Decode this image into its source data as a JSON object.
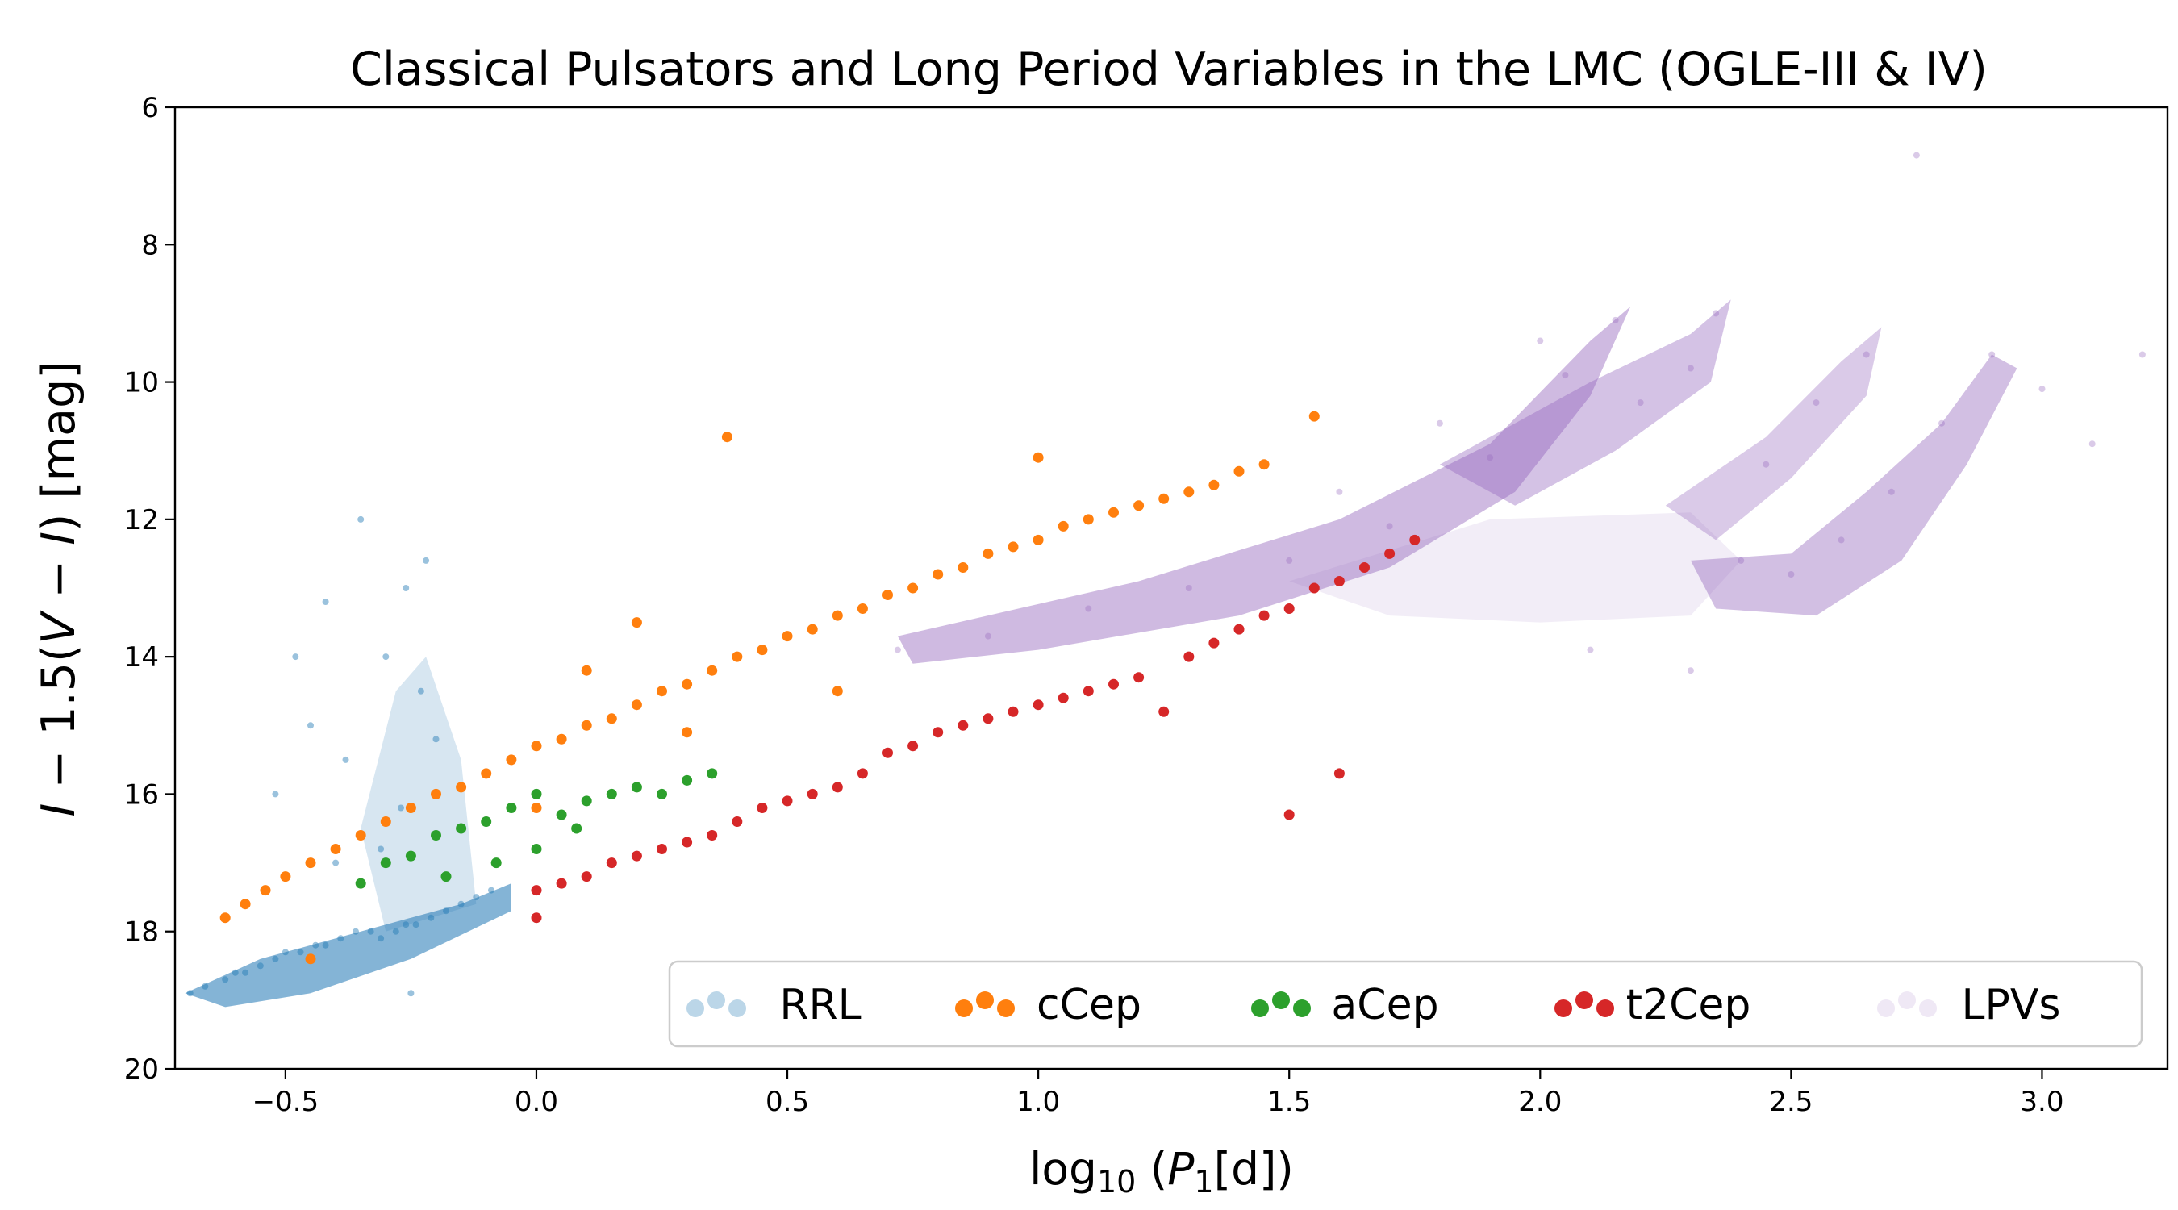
{
  "chart_data": {
    "type": "scatter",
    "title": "Classical Pulsators and Long Period Variables in the LMC (OGLE-III & IV)",
    "xlabel": {
      "base": "log",
      "sub": "10",
      "mid": " (",
      "var": "P",
      "varsub": "1",
      "tail": "[d])"
    },
    "ylabel": {
      "v1": "I",
      "t1": " − 1.5(",
      "v2": "V",
      "t2": " − ",
      "v3": "I",
      "t3": ") [mag]"
    },
    "xlim": [
      -0.72,
      3.25
    ],
    "ylim": [
      20,
      6
    ],
    "x_ticks": [
      -0.5,
      0.0,
      0.5,
      1.0,
      1.5,
      2.0,
      2.5,
      3.0
    ],
    "x_tick_labels": [
      "−0.5",
      "0.0",
      "0.5",
      "1.0",
      "1.5",
      "2.0",
      "2.5",
      "3.0"
    ],
    "y_ticks": [
      6,
      8,
      10,
      12,
      14,
      16,
      18,
      20
    ],
    "y_tick_labels": [
      "6",
      "8",
      "10",
      "12",
      "14",
      "16",
      "18",
      "20"
    ],
    "legend_position": "lower-right",
    "series": [
      {
        "name": "RRL",
        "color": "#1f77b4",
        "points": [
          [
            -0.69,
            18.9
          ],
          [
            -0.66,
            18.8
          ],
          [
            -0.62,
            18.7
          ],
          [
            -0.58,
            18.6
          ],
          [
            -0.55,
            18.5
          ],
          [
            -0.52,
            18.4
          ],
          [
            -0.5,
            18.3
          ],
          [
            -0.47,
            18.3
          ],
          [
            -0.44,
            18.2
          ],
          [
            -0.42,
            18.2
          ],
          [
            -0.39,
            18.1
          ],
          [
            -0.36,
            18.0
          ],
          [
            -0.33,
            18.0
          ],
          [
            -0.31,
            18.1
          ],
          [
            -0.28,
            18.0
          ],
          [
            -0.26,
            17.9
          ],
          [
            -0.24,
            17.9
          ],
          [
            -0.21,
            17.8
          ],
          [
            -0.18,
            17.7
          ],
          [
            -0.15,
            17.6
          ],
          [
            -0.12,
            17.5
          ],
          [
            -0.09,
            17.4
          ],
          [
            -0.48,
            14.0
          ],
          [
            -0.45,
            15.0
          ],
          [
            -0.42,
            13.2
          ],
          [
            -0.52,
            16.0
          ],
          [
            -0.38,
            15.5
          ],
          [
            -0.35,
            12.0
          ],
          [
            -0.3,
            14.0
          ],
          [
            -0.26,
            13.0
          ],
          [
            -0.23,
            14.5
          ],
          [
            -0.2,
            15.2
          ],
          [
            -0.22,
            12.6
          ],
          [
            -0.27,
            16.2
          ],
          [
            -0.31,
            16.8
          ],
          [
            -0.4,
            17.0
          ],
          [
            -0.6,
            18.6
          ],
          [
            -0.25,
            18.9
          ]
        ]
      },
      {
        "name": "cCep",
        "color": "#ff7f0e",
        "points": [
          [
            -0.62,
            17.8
          ],
          [
            -0.58,
            17.6
          ],
          [
            -0.54,
            17.4
          ],
          [
            -0.5,
            17.2
          ],
          [
            -0.45,
            17.0
          ],
          [
            -0.4,
            16.8
          ],
          [
            -0.35,
            16.6
          ],
          [
            -0.3,
            16.4
          ],
          [
            -0.25,
            16.2
          ],
          [
            -0.2,
            16.0
          ],
          [
            -0.15,
            15.9
          ],
          [
            -0.1,
            15.7
          ],
          [
            -0.05,
            15.5
          ],
          [
            0.0,
            15.3
          ],
          [
            0.05,
            15.2
          ],
          [
            0.1,
            15.0
          ],
          [
            0.15,
            14.9
          ],
          [
            0.2,
            14.7
          ],
          [
            0.25,
            14.5
          ],
          [
            0.3,
            14.4
          ],
          [
            0.35,
            14.2
          ],
          [
            0.4,
            14.0
          ],
          [
            0.45,
            13.9
          ],
          [
            0.5,
            13.7
          ],
          [
            0.55,
            13.6
          ],
          [
            0.6,
            13.4
          ],
          [
            0.65,
            13.3
          ],
          [
            0.7,
            13.1
          ],
          [
            0.75,
            13.0
          ],
          [
            0.8,
            12.8
          ],
          [
            0.85,
            12.7
          ],
          [
            0.9,
            12.5
          ],
          [
            0.95,
            12.4
          ],
          [
            1.0,
            12.3
          ],
          [
            1.05,
            12.1
          ],
          [
            1.1,
            12.0
          ],
          [
            1.15,
            11.9
          ],
          [
            1.2,
            11.8
          ],
          [
            1.25,
            11.7
          ],
          [
            1.3,
            11.6
          ],
          [
            1.35,
            11.5
          ],
          [
            1.4,
            11.3
          ],
          [
            1.45,
            11.2
          ],
          [
            0.38,
            10.8
          ],
          [
            1.0,
            11.1
          ],
          [
            1.55,
            10.5
          ],
          [
            -0.45,
            18.4
          ],
          [
            0.0,
            16.2
          ],
          [
            0.2,
            13.5
          ],
          [
            0.1,
            14.2
          ],
          [
            0.3,
            15.1
          ],
          [
            0.6,
            14.5
          ]
        ]
      },
      {
        "name": "aCep",
        "color": "#2ca02c",
        "points": [
          [
            -0.35,
            17.3
          ],
          [
            -0.3,
            17.0
          ],
          [
            -0.25,
            16.9
          ],
          [
            -0.2,
            16.6
          ],
          [
            -0.15,
            16.5
          ],
          [
            -0.1,
            16.4
          ],
          [
            -0.05,
            16.2
          ],
          [
            0.0,
            16.0
          ],
          [
            0.05,
            16.3
          ],
          [
            0.1,
            16.1
          ],
          [
            0.15,
            16.0
          ],
          [
            0.2,
            15.9
          ],
          [
            0.25,
            16.0
          ],
          [
            0.3,
            15.8
          ],
          [
            0.35,
            15.7
          ],
          [
            -0.08,
            17.0
          ],
          [
            0.0,
            16.8
          ],
          [
            0.08,
            16.5
          ],
          [
            -0.18,
            17.2
          ]
        ]
      },
      {
        "name": "t2Cep",
        "color": "#d62728",
        "points": [
          [
            0.0,
            17.4
          ],
          [
            0.05,
            17.3
          ],
          [
            0.1,
            17.2
          ],
          [
            0.15,
            17.0
          ],
          [
            0.2,
            16.9
          ],
          [
            0.25,
            16.8
          ],
          [
            0.3,
            16.7
          ],
          [
            0.35,
            16.6
          ],
          [
            0.4,
            16.4
          ],
          [
            0.45,
            16.2
          ],
          [
            0.5,
            16.1
          ],
          [
            0.55,
            16.0
          ],
          [
            0.6,
            15.9
          ],
          [
            0.65,
            15.7
          ],
          [
            0.7,
            15.4
          ],
          [
            0.75,
            15.3
          ],
          [
            0.8,
            15.1
          ],
          [
            0.85,
            15.0
          ],
          [
            0.9,
            14.9
          ],
          [
            0.95,
            14.8
          ],
          [
            1.0,
            14.7
          ],
          [
            1.05,
            14.6
          ],
          [
            1.1,
            14.5
          ],
          [
            1.15,
            14.4
          ],
          [
            1.2,
            14.3
          ],
          [
            1.3,
            14.0
          ],
          [
            1.35,
            13.8
          ],
          [
            1.4,
            13.6
          ],
          [
            1.45,
            13.4
          ],
          [
            1.5,
            13.3
          ],
          [
            1.55,
            13.0
          ],
          [
            1.6,
            12.9
          ],
          [
            1.65,
            12.7
          ],
          [
            1.7,
            12.5
          ],
          [
            1.75,
            12.3
          ],
          [
            1.5,
            16.3
          ],
          [
            1.6,
            15.7
          ],
          [
            0.0,
            17.8
          ],
          [
            1.25,
            14.8
          ]
        ]
      },
      {
        "name": "LPVs",
        "color": "#9467bd",
        "points": [
          [
            0.72,
            13.9
          ],
          [
            0.9,
            13.7
          ],
          [
            1.1,
            13.3
          ],
          [
            1.3,
            13.0
          ],
          [
            1.5,
            12.6
          ],
          [
            1.7,
            12.1
          ],
          [
            1.9,
            11.1
          ],
          [
            2.05,
            9.9
          ],
          [
            2.15,
            9.1
          ],
          [
            1.6,
            11.6
          ],
          [
            1.8,
            10.6
          ],
          [
            2.0,
            9.4
          ],
          [
            2.2,
            10.3
          ],
          [
            2.3,
            9.8
          ],
          [
            2.35,
            9.0
          ],
          [
            2.45,
            11.2
          ],
          [
            2.55,
            10.3
          ],
          [
            2.65,
            9.6
          ],
          [
            2.4,
            12.6
          ],
          [
            2.5,
            12.8
          ],
          [
            2.6,
            12.3
          ],
          [
            2.7,
            11.6
          ],
          [
            2.8,
            10.6
          ],
          [
            2.9,
            9.6
          ],
          [
            3.0,
            10.1
          ],
          [
            2.3,
            14.2
          ],
          [
            2.1,
            13.9
          ],
          [
            3.1,
            10.9
          ],
          [
            3.2,
            9.6
          ],
          [
            2.75,
            6.7
          ]
        ]
      }
    ]
  }
}
